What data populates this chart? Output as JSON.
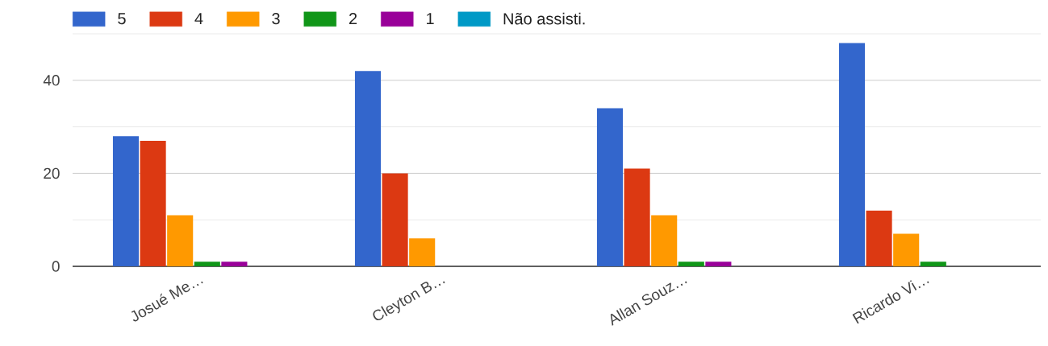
{
  "chart_data": {
    "type": "bar",
    "categories": [
      "Josué Me…",
      "Cleyton B…",
      "Allan Souz…",
      "Ricardo Vi…"
    ],
    "series": [
      {
        "name": "5",
        "color": "#3366cc",
        "values": [
          28,
          42,
          34,
          48
        ]
      },
      {
        "name": "4",
        "color": "#dc3912",
        "values": [
          27,
          20,
          21,
          12
        ]
      },
      {
        "name": "3",
        "color": "#ff9900",
        "values": [
          11,
          6,
          11,
          7
        ]
      },
      {
        "name": "2",
        "color": "#109618",
        "values": [
          1,
          0,
          1,
          1
        ]
      },
      {
        "name": "1",
        "color": "#990099",
        "values": [
          1,
          0,
          1,
          0
        ]
      },
      {
        "name": "Não assisti.",
        "color": "#0099c6",
        "values": [
          0,
          0,
          0,
          0
        ]
      }
    ],
    "ylim": [
      0,
      50
    ],
    "yticks": [
      0,
      {
        "value": 10,
        "label": null
      },
      20,
      {
        "value": 30,
        "label": null
      },
      40,
      {
        "value": 50,
        "label": null
      }
    ],
    "grid": "y",
    "legend": "top left"
  }
}
